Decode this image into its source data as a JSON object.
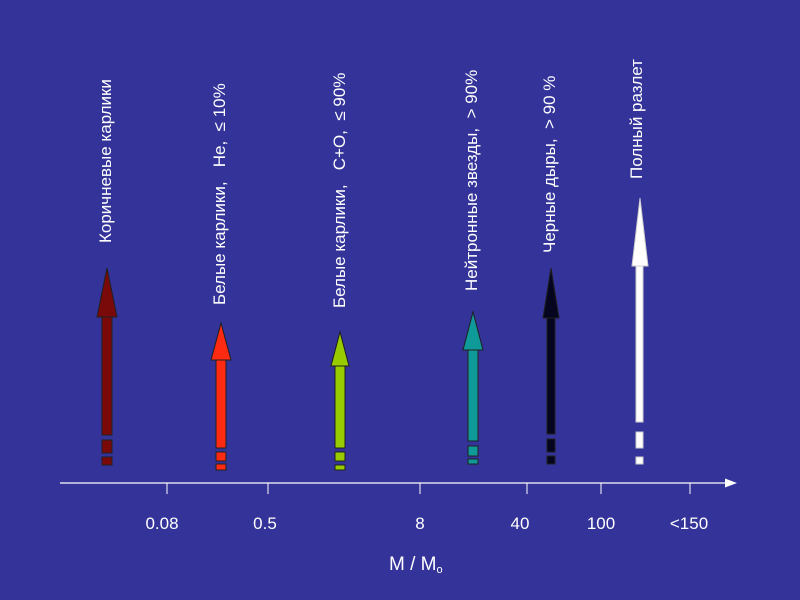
{
  "colors": {
    "background": "#333399",
    "axis": "#ffffff",
    "text": "#ffffff"
  },
  "axis": {
    "title_main": "M / M",
    "title_sub": "o",
    "ticks": [
      "0.08",
      "0.5",
      "8",
      "40",
      "100",
      "<150"
    ]
  },
  "arrows": [
    {
      "label": "Коричневые карлики",
      "color": "#7a0a0a"
    },
    {
      "label": "Белые карлики,   He,  ≤ 10%",
      "color": "#ff2a12"
    },
    {
      "label": "Белые карлики,   C+O,  ≤ 90%",
      "color": "#99cc00"
    },
    {
      "label": "Нейтронные звезды,  > 90%",
      "color": "#0f9999"
    },
    {
      "label": "Черные дыры,  > 90 %",
      "color": "#050520"
    },
    {
      "label": "Полный разлет",
      "color": "#ffffff"
    }
  ]
}
